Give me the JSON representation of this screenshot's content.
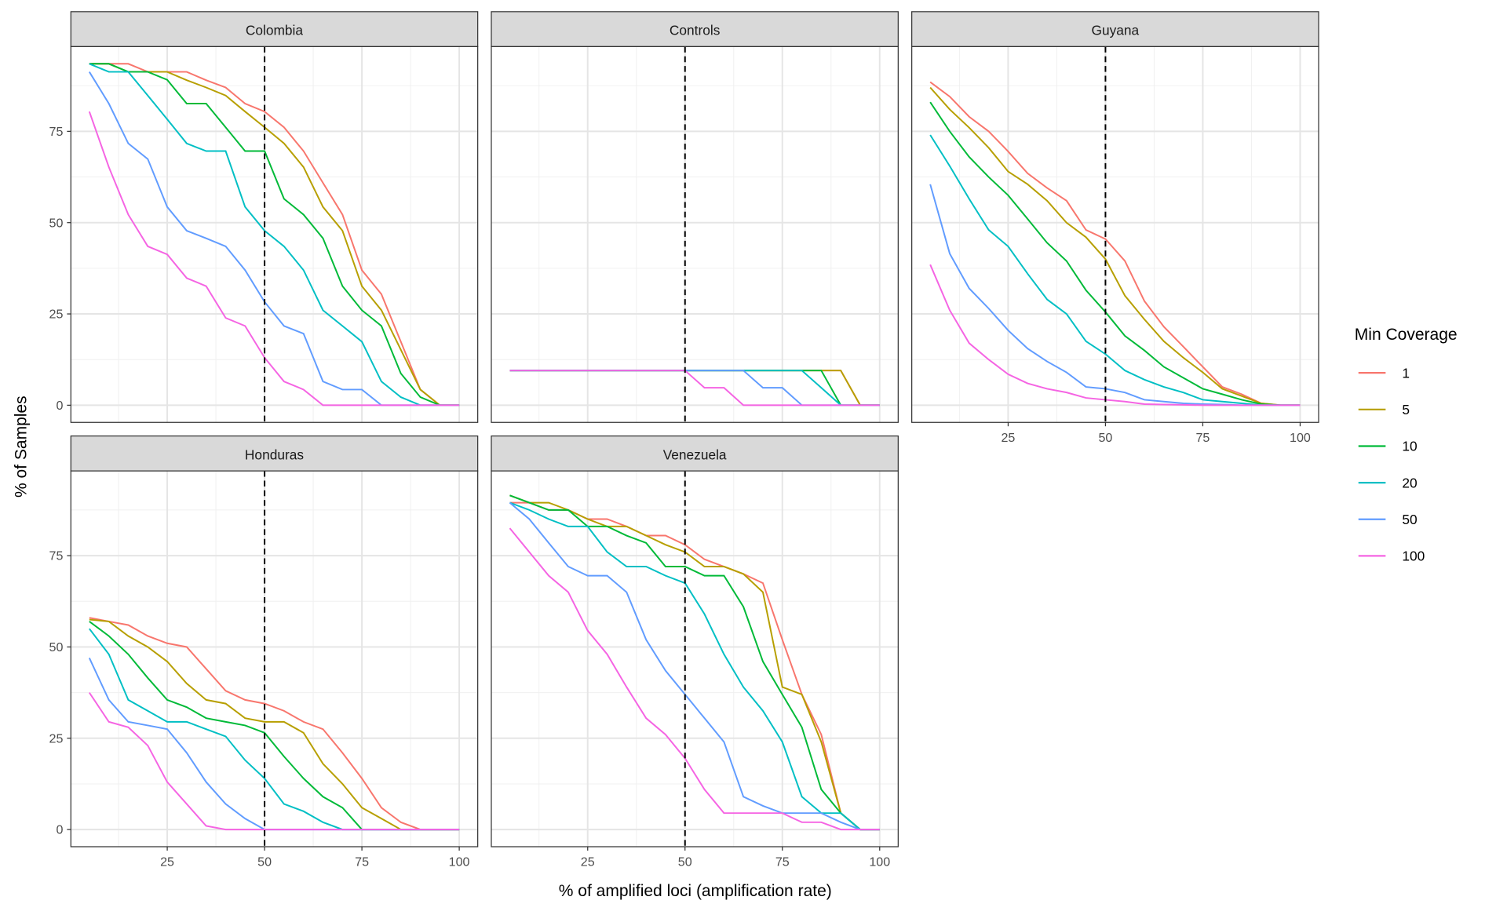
{
  "chart_data": {
    "type": "line",
    "xlabel": "% of amplified loci (amplification rate)",
    "ylabel": "% of Samples",
    "x": [
      5,
      10,
      15,
      20,
      25,
      30,
      35,
      40,
      45,
      50,
      55,
      60,
      65,
      70,
      75,
      80,
      85,
      90,
      95,
      100
    ],
    "x_ticks": [
      25,
      50,
      75,
      100
    ],
    "y_ticks": [
      0,
      25,
      50,
      75
    ],
    "xlim": [
      0.25,
      104.75
    ],
    "ylim": [
      -4.7,
      98.2
    ],
    "grid": true,
    "reference_line": {
      "x": 50,
      "style": "dashed"
    },
    "legend": {
      "title": "Min Coverage",
      "placement": "right"
    },
    "series_names": [
      "1",
      "5",
      "10",
      "20",
      "50",
      "100"
    ],
    "colors": [
      "#F8766D",
      "#B79F00",
      "#00BA38",
      "#00BFC4",
      "#619CFF",
      "#F564E3"
    ],
    "panels": [
      {
        "title": "Colombia",
        "series": [
          [
            93.5,
            93.5,
            93.5,
            91.3,
            91.3,
            91.3,
            89,
            87,
            82.6,
            80.4,
            76.1,
            69.6,
            60.9,
            52.2,
            37,
            30.4,
            17.4,
            4.3,
            0,
            0
          ],
          [
            93.5,
            93.5,
            91.3,
            91.3,
            91.3,
            89,
            87,
            84.8,
            80.4,
            76.1,
            71.7,
            65.2,
            54.3,
            47.8,
            32.6,
            26,
            15.2,
            4.3,
            0,
            0
          ],
          [
            93.5,
            93.5,
            91.3,
            91.3,
            89.1,
            82.6,
            82.6,
            76.1,
            69.6,
            69.6,
            56.5,
            52.2,
            45.7,
            32.6,
            26,
            21.7,
            8.7,
            2.2,
            0,
            0
          ],
          [
            93.5,
            91.3,
            91.3,
            84.8,
            78.3,
            71.7,
            69.6,
            69.6,
            54.3,
            47.8,
            43.5,
            37,
            26,
            21.7,
            17.4,
            6.5,
            2.2,
            0,
            0,
            0
          ],
          [
            91.3,
            82.6,
            71.7,
            67.4,
            54.3,
            47.8,
            45.7,
            43.5,
            37,
            28.3,
            21.7,
            19.6,
            6.5,
            4.3,
            4.3,
            0,
            0,
            0,
            0,
            0
          ],
          [
            80.4,
            65.2,
            52.2,
            43.5,
            41.3,
            34.8,
            32.6,
            23.9,
            21.7,
            13,
            6.5,
            4.3,
            0,
            0,
            0,
            0,
            0,
            0,
            0,
            0
          ]
        ]
      },
      {
        "title": "Controls",
        "series": [
          [
            9.5,
            9.5,
            9.5,
            9.5,
            9.5,
            9.5,
            9.5,
            9.5,
            9.5,
            9.5,
            9.5,
            9.5,
            9.5,
            9.5,
            9.5,
            9.5,
            9.5,
            9.5,
            0,
            0
          ],
          [
            9.5,
            9.5,
            9.5,
            9.5,
            9.5,
            9.5,
            9.5,
            9.5,
            9.5,
            9.5,
            9.5,
            9.5,
            9.5,
            9.5,
            9.5,
            9.5,
            9.5,
            9.5,
            0,
            0
          ],
          [
            9.5,
            9.5,
            9.5,
            9.5,
            9.5,
            9.5,
            9.5,
            9.5,
            9.5,
            9.5,
            9.5,
            9.5,
            9.5,
            9.5,
            9.5,
            9.5,
            9.5,
            0,
            0,
            0
          ],
          [
            9.5,
            9.5,
            9.5,
            9.5,
            9.5,
            9.5,
            9.5,
            9.5,
            9.5,
            9.5,
            9.5,
            9.5,
            9.5,
            9.5,
            9.5,
            9.5,
            4.8,
            0,
            0,
            0
          ],
          [
            9.5,
            9.5,
            9.5,
            9.5,
            9.5,
            9.5,
            9.5,
            9.5,
            9.5,
            9.5,
            9.5,
            9.5,
            9.5,
            4.8,
            4.8,
            0,
            0,
            0,
            0,
            0
          ],
          [
            9.5,
            9.5,
            9.5,
            9.5,
            9.5,
            9.5,
            9.5,
            9.5,
            9.5,
            9.5,
            4.8,
            4.8,
            0,
            0,
            0,
            0,
            0,
            0,
            0,
            0
          ]
        ]
      },
      {
        "title": "Guyana",
        "series": [
          [
            88.5,
            84.5,
            79,
            75,
            69.5,
            63.5,
            59.5,
            56,
            48,
            45.5,
            39.5,
            28.5,
            21.5,
            16,
            10.5,
            5,
            3,
            0.5,
            0,
            0
          ],
          [
            87,
            81,
            76,
            70.5,
            64,
            60.5,
            56,
            50,
            46,
            40,
            30,
            23.5,
            17.5,
            13,
            9,
            4.5,
            2.5,
            0.5,
            0,
            0
          ],
          [
            83,
            75,
            68,
            62.5,
            57.5,
            51,
            44.5,
            39.5,
            31.5,
            25.5,
            19,
            15,
            10.5,
            7.5,
            4.5,
            3,
            1.5,
            0.3,
            0,
            0
          ],
          [
            74,
            65.5,
            56.5,
            48,
            43.5,
            36,
            29,
            25,
            17.5,
            14,
            9.5,
            7,
            5,
            3.5,
            1.5,
            1,
            0.5,
            0,
            0,
            0
          ],
          [
            60.5,
            41.5,
            32,
            26.5,
            20.5,
            15.5,
            12,
            9,
            5,
            4.5,
            3.5,
            1.5,
            1,
            0.5,
            0.3,
            0.2,
            0,
            0,
            0,
            0
          ],
          [
            38.5,
            26,
            17,
            12.5,
            8.5,
            6,
            4.5,
            3.5,
            2,
            1.5,
            1,
            0.3,
            0.2,
            0.1,
            0,
            0,
            0,
            0,
            0,
            0
          ]
        ]
      },
      {
        "title": "Honduras",
        "series": [
          [
            58,
            57,
            56,
            53,
            51,
            50,
            44,
            38,
            35.5,
            34.5,
            32.5,
            29.5,
            27.5,
            21,
            14,
            6,
            2,
            0,
            0,
            0
          ],
          [
            57.5,
            57,
            53,
            50,
            46,
            40,
            35.5,
            34.5,
            30.5,
            29.5,
            29.5,
            26.5,
            18,
            12.5,
            6,
            3,
            0,
            0,
            0,
            0
          ],
          [
            57,
            53,
            48,
            41.5,
            35.5,
            33.5,
            30.5,
            29.5,
            28.5,
            26.5,
            20,
            14,
            9,
            6,
            0,
            0,
            0,
            0,
            0,
            0
          ],
          [
            55,
            48,
            35.5,
            32.5,
            29.5,
            29.5,
            27.5,
            25.5,
            19,
            14,
            7,
            5,
            2,
            0,
            0,
            0,
            0,
            0,
            0,
            0
          ],
          [
            47,
            35.5,
            29.5,
            28.5,
            27.5,
            21,
            13,
            7,
            3,
            0,
            0,
            0,
            0,
            0,
            0,
            0,
            0,
            0,
            0,
            0
          ],
          [
            37.5,
            29.5,
            28,
            23,
            13,
            7,
            1,
            0,
            0,
            0,
            0,
            0,
            0,
            0,
            0,
            0,
            0,
            0,
            0,
            0
          ]
        ]
      },
      {
        "title": "Venezuela",
        "series": [
          [
            89.5,
            89.5,
            87.5,
            87.5,
            85,
            85,
            83,
            80.5,
            80.5,
            78,
            74,
            72,
            70,
            67.5,
            52,
            37,
            26,
            4.5,
            0,
            0
          ],
          [
            91.5,
            89.5,
            89.5,
            87.5,
            85,
            83,
            83,
            80.5,
            78,
            76,
            72,
            72,
            70,
            65,
            39,
            37,
            24,
            4.5,
            0,
            0
          ],
          [
            91.5,
            89.5,
            87.5,
            87.5,
            83,
            83,
            80.5,
            78.5,
            72,
            72,
            69.5,
            69.5,
            61,
            46,
            37,
            28,
            11,
            4.5,
            0,
            0
          ],
          [
            89.5,
            87.5,
            85,
            83,
            83,
            76,
            72,
            72,
            69.5,
            67.5,
            59,
            48,
            39,
            32.5,
            24,
            9,
            4.5,
            4.5,
            0,
            0
          ],
          [
            89.5,
            85,
            78.5,
            72,
            69.5,
            69.5,
            65,
            52,
            43.5,
            37,
            30.5,
            24,
            9,
            6.5,
            4.5,
            4.5,
            4.5,
            2,
            0,
            0
          ],
          [
            82.5,
            76,
            69.5,
            65,
            54.5,
            48,
            39,
            30.5,
            26,
            19.5,
            11,
            4.5,
            4.5,
            4.5,
            4.5,
            2,
            2,
            0,
            0,
            0
          ]
        ]
      }
    ]
  }
}
